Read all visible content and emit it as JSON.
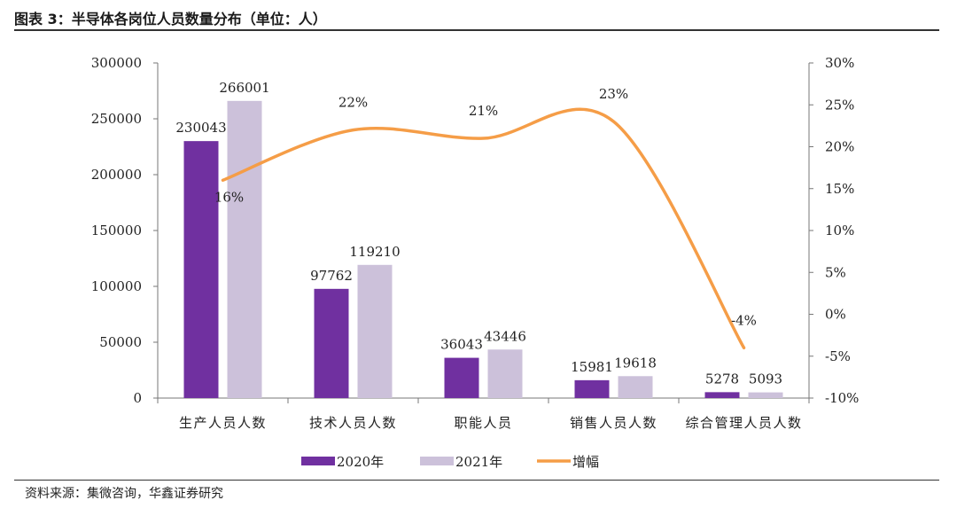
{
  "figure": {
    "title": "图表 3：半导体各岗位人员数量分布（单位：人）",
    "source": "资料来源：集微咨询，华鑫证券研究"
  },
  "chart_data": {
    "type": "bar",
    "categories": [
      "生产人员人数",
      "技术人员人数",
      "职能人员",
      "销售人员人数",
      "综合管理人员人数"
    ],
    "series": [
      {
        "name": "2020年",
        "type": "bar",
        "axis": "left",
        "color": "#7030a0",
        "values": [
          230043,
          97762,
          36043,
          15981,
          5278
        ],
        "labels": [
          "230043",
          "97762",
          "36043",
          "15981",
          "5278"
        ]
      },
      {
        "name": "2021年",
        "type": "bar",
        "axis": "left",
        "color": "#ccc1da",
        "values": [
          266001,
          119210,
          43446,
          19618,
          5093
        ],
        "labels": [
          "266001",
          "119210",
          "43446",
          "19618",
          "5093"
        ]
      },
      {
        "name": "增幅",
        "type": "line",
        "axis": "right",
        "color": "#f59d47",
        "values": [
          16,
          22,
          21,
          23,
          -4
        ],
        "labels": [
          "16%",
          "22%",
          "21%",
          "23%",
          "-4%"
        ]
      }
    ],
    "left_axis": {
      "min": 0,
      "max": 300000,
      "ticks": [
        0,
        50000,
        100000,
        150000,
        200000,
        250000,
        300000
      ],
      "tick_labels": [
        "0",
        "50000",
        "100000",
        "150000",
        "200000",
        "250000",
        "300000"
      ]
    },
    "right_axis": {
      "min": -10,
      "max": 30,
      "ticks": [
        -10,
        -5,
        0,
        5,
        10,
        15,
        20,
        25,
        30
      ],
      "tick_labels": [
        "-10%",
        "-5%",
        "0%",
        "5%",
        "10%",
        "15%",
        "20%",
        "25%",
        "30%"
      ]
    },
    "grid": false,
    "legend": "bottom"
  }
}
